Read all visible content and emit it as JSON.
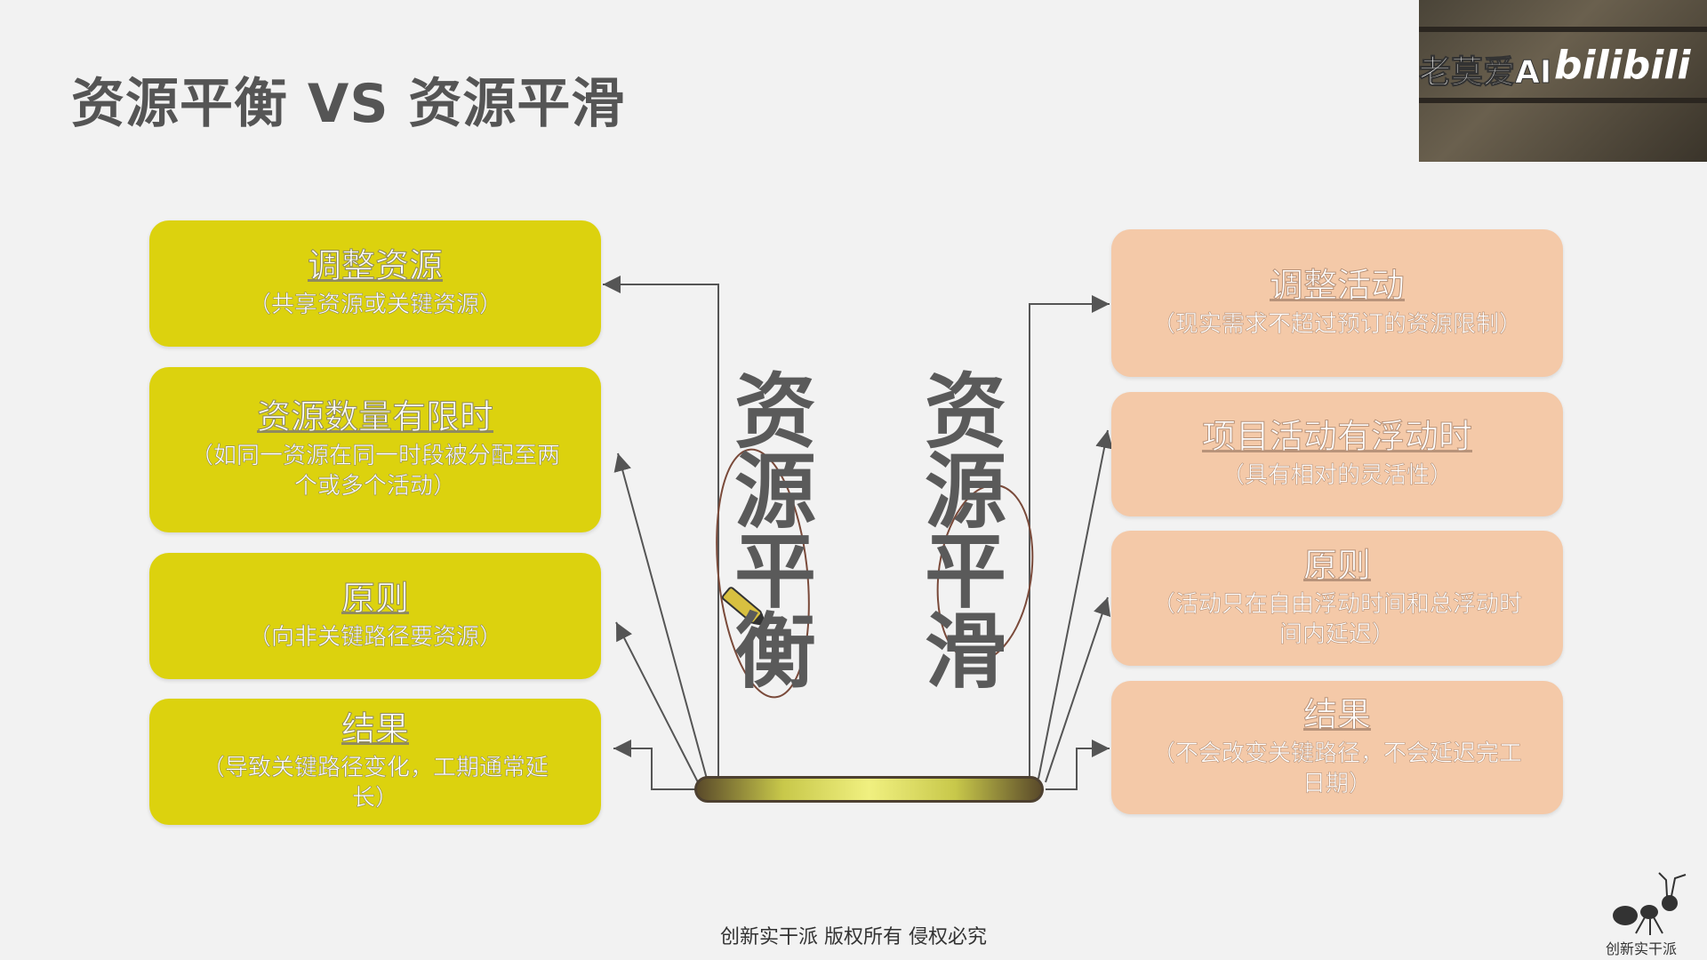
{
  "title": "资源平衡 VS 资源平滑",
  "left_boxes": [
    {
      "head": "调整资源",
      "sub": "（共享资源或关键资源）"
    },
    {
      "head": "资源数量有限时",
      "sub": "（如同一资源在同一时段被分配至两个或多个活动）"
    },
    {
      "head": "原则",
      "sub": "（向非关键路径要资源）"
    },
    {
      "head": "结果",
      "sub": "（导致关键路径变化，工期通常延长）"
    }
  ],
  "right_boxes": [
    {
      "head": "调整活动",
      "sub": "（现实需求不超过预订的资源限制）"
    },
    {
      "head": "项目活动有浮动时",
      "sub": "（具有相对的灵活性）"
    },
    {
      "head": "原则",
      "sub": "（活动只在自由浮动时间和总浮动时间内延迟）"
    },
    {
      "head": "结果",
      "sub": "（不会改变关键路径，不会延迟完工日期）"
    }
  ],
  "center_left": [
    "资",
    "源",
    "平",
    "衡"
  ],
  "center_right": [
    "资",
    "源",
    "平",
    "滑"
  ],
  "video_overlay": {
    "channel": "老莫爱AI",
    "site": "bilibili"
  },
  "footer": "创新实干派  版权所有  侵权必究",
  "logo_text": "创新实干派",
  "colors": {
    "left_box": "#dcd20e",
    "right_box": "#f4c9a8",
    "background": "#f2f2f2"
  }
}
